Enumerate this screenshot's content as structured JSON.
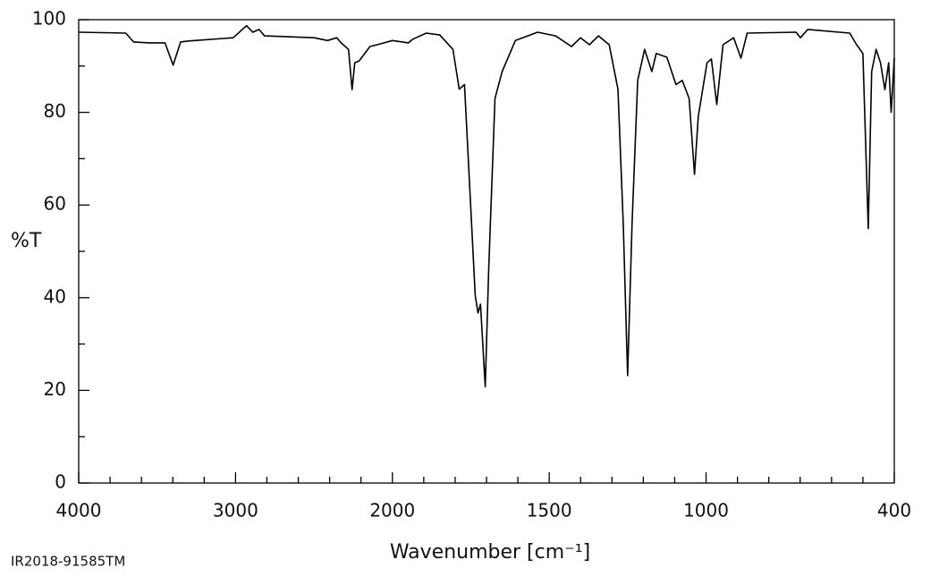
{
  "chart_data": {
    "type": "line",
    "ylabel": "%T",
    "xlabel": "Wavenumber [cm⁻¹]",
    "footnote": "IR2018-91585TM",
    "color": "#000000",
    "xlim": [
      4000,
      400
    ],
    "x_scale_break": 2000,
    "xticks": [
      4000,
      3000,
      2000,
      1500,
      1000,
      400
    ],
    "xminorticks": [
      3800,
      3600,
      3400,
      3200,
      2800,
      2600,
      2400,
      2200,
      1900,
      1800,
      1700,
      1600,
      1400,
      1300,
      1200,
      1100,
      900,
      800,
      700,
      600,
      500
    ],
    "ylim": [
      0,
      100
    ],
    "yticks": [
      0,
      20,
      40,
      60,
      80,
      100
    ],
    "yminorticks": [
      10,
      30,
      50,
      70,
      90
    ],
    "x": [
      4000,
      3700,
      3650,
      3550,
      3450,
      3398,
      3350,
      3300,
      3015,
      2930,
      2890,
      2850,
      2815,
      2500,
      2413,
      2355,
      2327,
      2280,
      2257,
      2240,
      2212,
      2143,
      2097,
      2000,
      1949,
      1935,
      1892,
      1849,
      1807,
      1787,
      1770,
      1736,
      1727,
      1719,
      1704,
      1693,
      1673,
      1650,
      1608,
      1537,
      1480,
      1429,
      1400,
      1372,
      1343,
      1309,
      1281,
      1264,
      1250,
      1236,
      1218,
      1196,
      1173,
      1159,
      1125,
      1096,
      1076,
      1054,
      1037,
      1025,
      997,
      983,
      966,
      946,
      912,
      889,
      869,
      713,
      699,
      676,
      542,
      520,
      500,
      483,
      472,
      458,
      444,
      430,
      418,
      410,
      400
    ],
    "values": [
      97.3,
      97.1,
      95.2,
      95,
      95,
      90.2,
      95.2,
      95.4,
      96.1,
      98.7,
      97.3,
      97.9,
      96.5,
      96.1,
      95.5,
      96.1,
      95,
      93.6,
      84.9,
      90.7,
      91.1,
      94.2,
      94.6,
      95.5,
      95,
      95.8,
      97.1,
      96.7,
      93.6,
      85,
      86,
      40.5,
      36.7,
      38.6,
      20.8,
      46.3,
      83,
      88.8,
      95.5,
      97.3,
      96.5,
      94.2,
      96.1,
      94.6,
      96.5,
      94.6,
      85,
      56.1,
      23.2,
      56.1,
      86.9,
      93.6,
      88.8,
      92.7,
      91.9,
      86,
      86.9,
      83,
      66.6,
      79.1,
      90.7,
      91.5,
      81.7,
      94.6,
      96.1,
      91.7,
      97.1,
      97.3,
      96.1,
      97.9,
      97.1,
      94.6,
      92.7,
      54.9,
      88.8,
      93.6,
      90.7,
      84.9,
      90.7,
      80,
      91.7
    ]
  }
}
